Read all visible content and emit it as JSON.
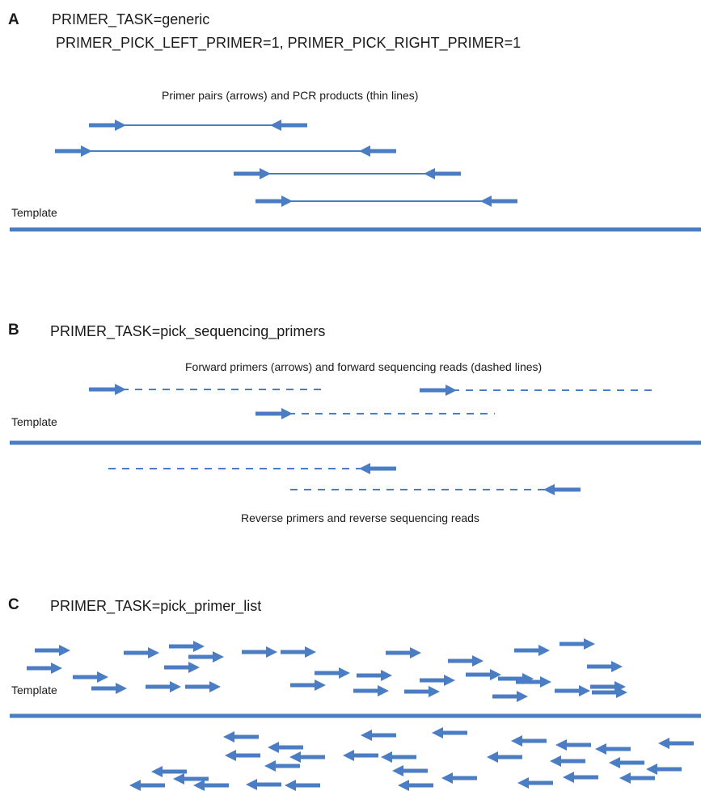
{
  "colors": {
    "primer": "#4a7dc4",
    "template": "#4a7dc4",
    "text": "#1a1a1a"
  },
  "panels": {
    "a": {
      "letter": "A",
      "task_line1": "PRIMER_TASK=generic",
      "task_line2": "PRIMER_PICK_LEFT_PRIMER=1, PRIMER_PICK_RIGHT_PRIMER=1",
      "caption": "Primer pairs (arrows) and PCR products (thin lines)",
      "template_label": "Template"
    },
    "b": {
      "letter": "B",
      "task_line1": "PRIMER_TASK=pick_sequencing_primers",
      "caption_forward": "Forward primers (arrows) and  forward sequencing reads (dashed lines)",
      "template_label": "Template",
      "caption_reverse": "Reverse primers and reverse sequencing reads"
    },
    "c": {
      "letter": "C",
      "task_line1": "PRIMER_TASK=pick_primer_list",
      "template_label": "Template"
    }
  }
}
